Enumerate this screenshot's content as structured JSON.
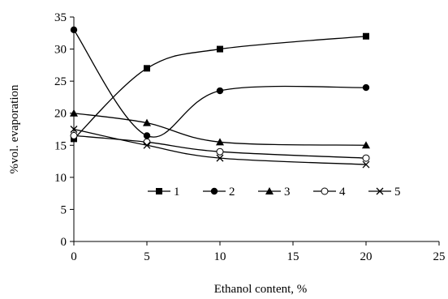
{
  "chart_data": {
    "type": "line",
    "title": "",
    "xlabel": "Ethanol content, %",
    "ylabel": "%vol. evaporation",
    "xlim": [
      0,
      25
    ],
    "ylim": [
      0,
      35
    ],
    "xticks": [
      0,
      5,
      10,
      15,
      20,
      25
    ],
    "yticks": [
      0,
      5,
      10,
      15,
      20,
      25,
      30,
      35
    ],
    "grid": false,
    "legend_position": "inside-center-right",
    "x": [
      0,
      5,
      10,
      20
    ],
    "series": [
      {
        "name": "1",
        "marker": "square",
        "values": [
          16,
          27,
          30,
          32
        ]
      },
      {
        "name": "2",
        "marker": "circle",
        "values": [
          33,
          16.5,
          23.5,
          24
        ]
      },
      {
        "name": "3",
        "marker": "triangle",
        "values": [
          20,
          18.5,
          15.5,
          15
        ]
      },
      {
        "name": "4",
        "marker": "open-circle",
        "values": [
          16.5,
          15.5,
          14,
          13
        ]
      },
      {
        "name": "5",
        "marker": "cross",
        "values": [
          17.5,
          15,
          13,
          12
        ]
      }
    ]
  }
}
